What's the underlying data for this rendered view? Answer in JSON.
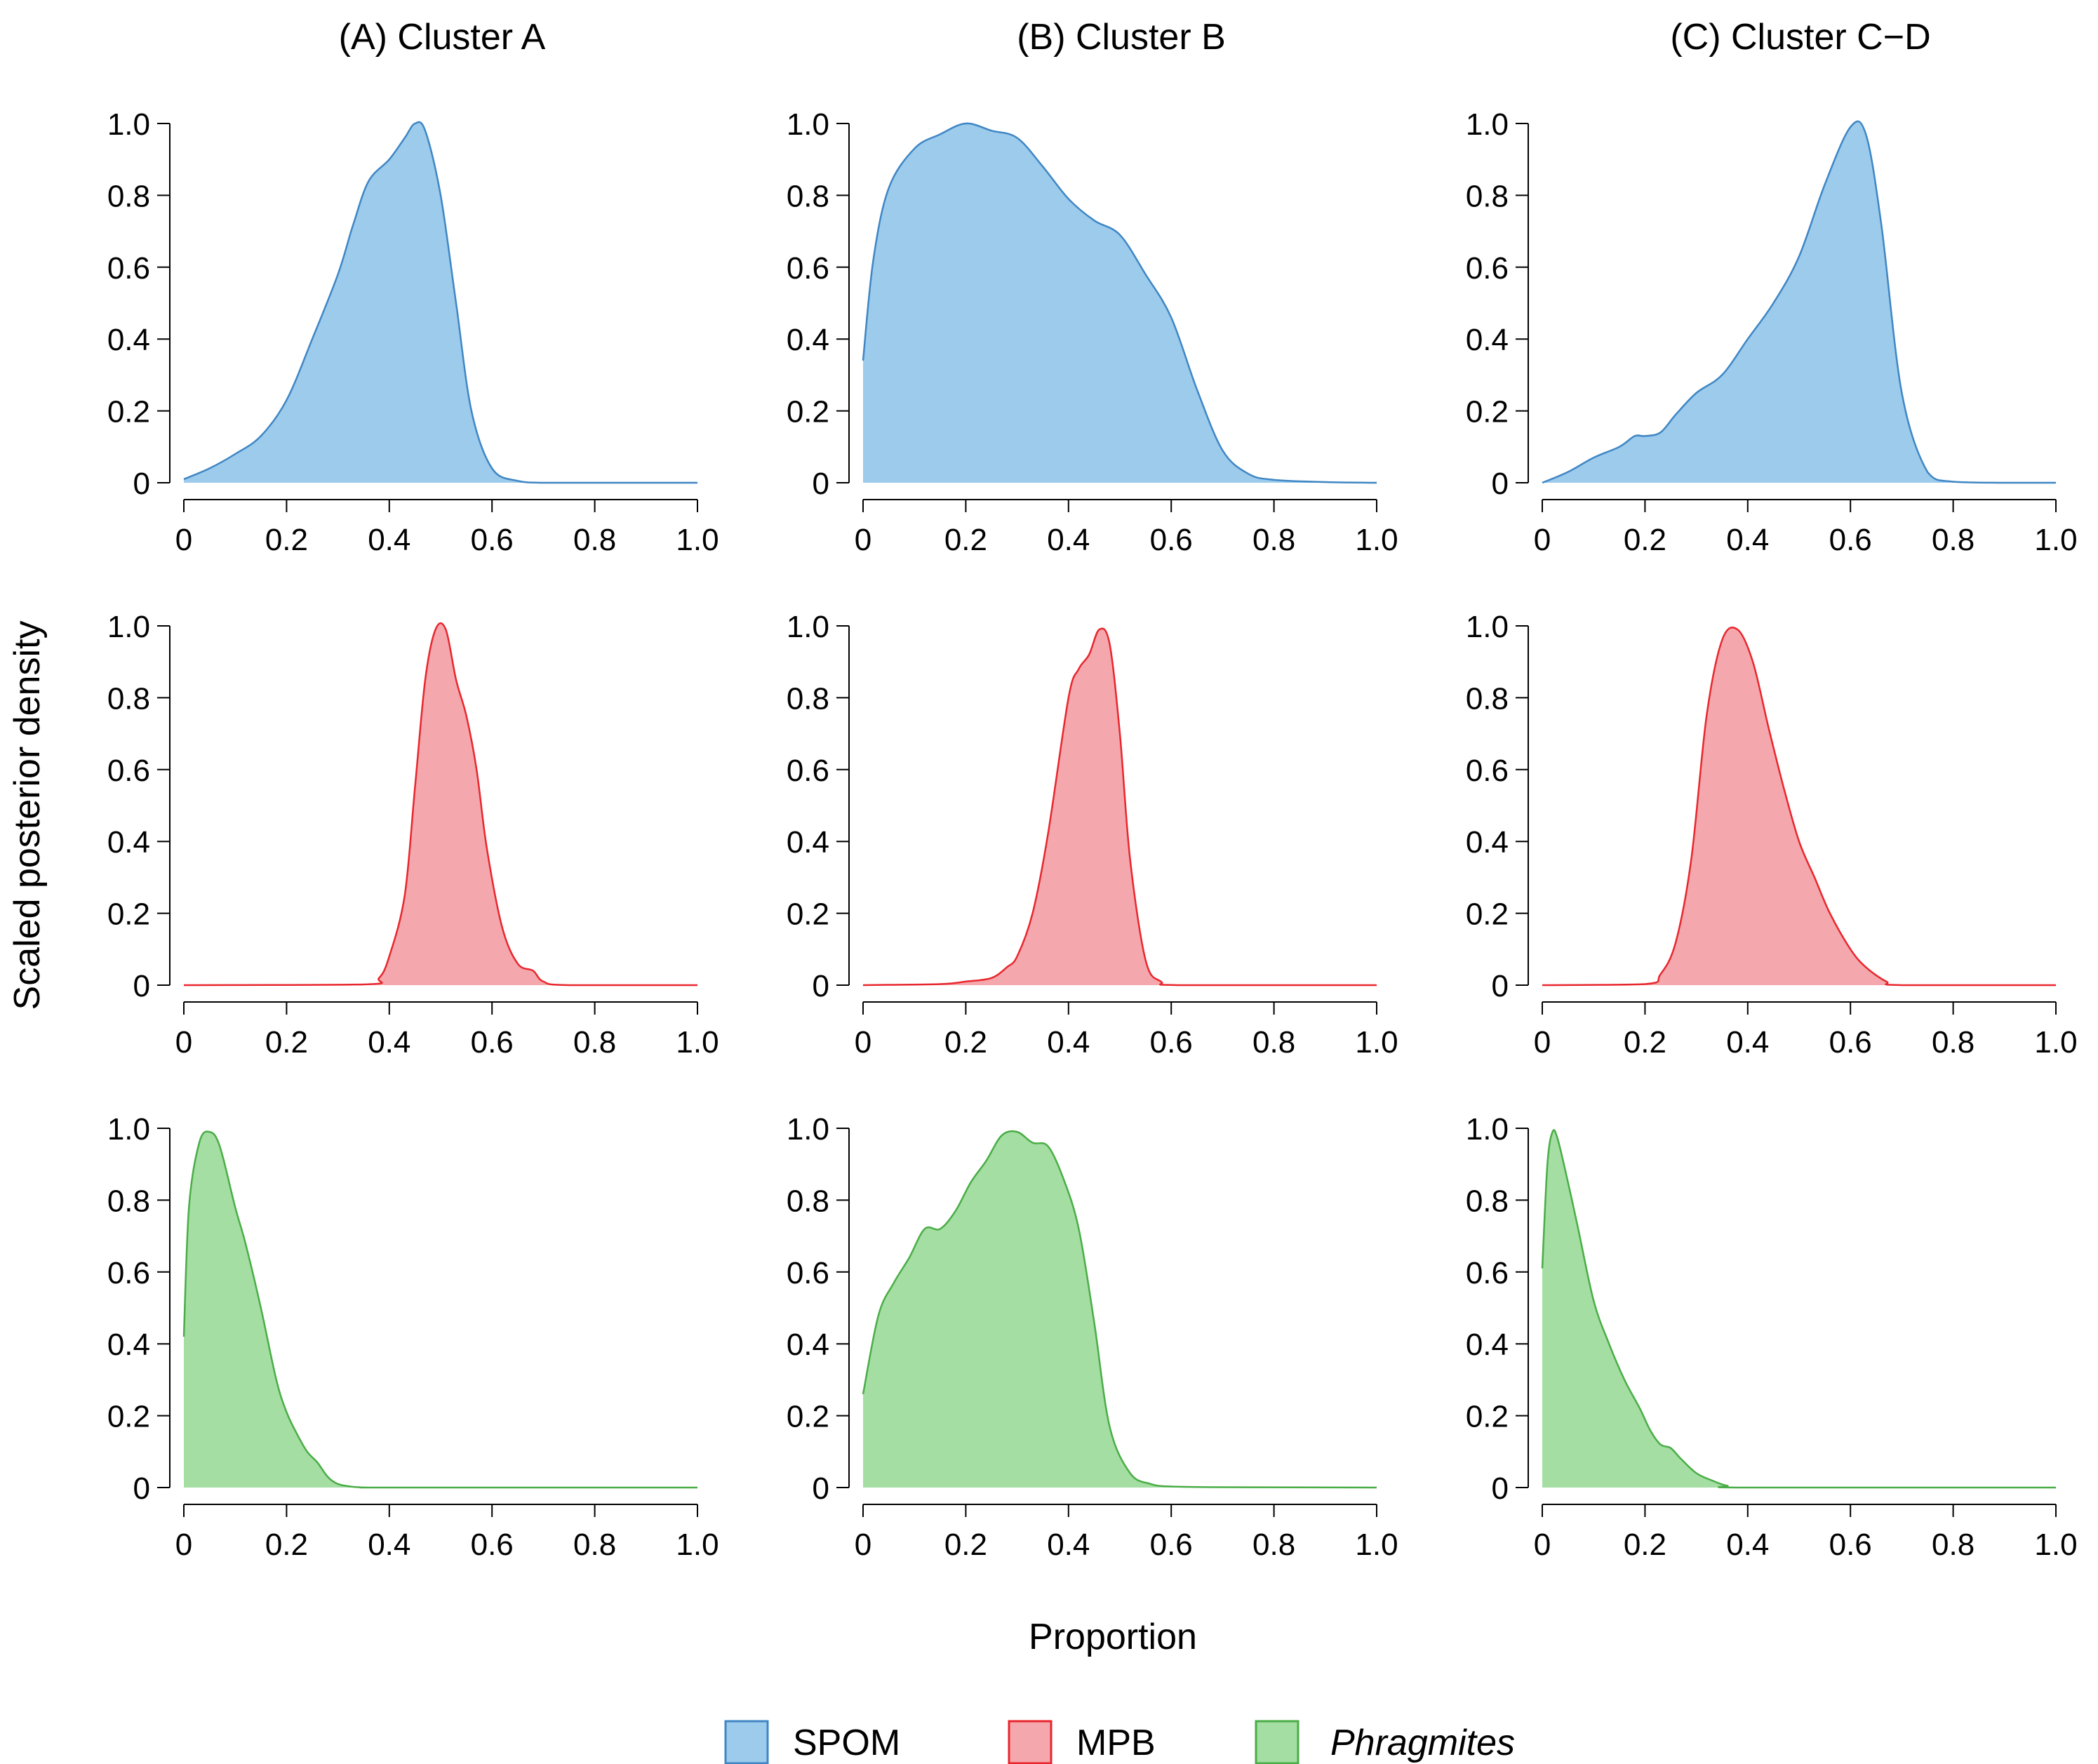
{
  "ylabel": "Scaled posterior density",
  "xlabel": "Proportion",
  "column_titles": [
    "(A) Cluster A",
    "(B) Cluster B",
    "(C) Cluster C−D"
  ],
  "legend": [
    {
      "label": "SPOM",
      "italic": false,
      "fill": "#9ccbec",
      "stroke": "#3f86c4"
    },
    {
      "label": "MPB",
      "italic": false,
      "fill": "#f4a8ad",
      "stroke": "#e8262d"
    },
    {
      "label": "Phragmites",
      "italic": true,
      "fill": "#a4dea2",
      "stroke": "#4aad47"
    }
  ],
  "chart_data": [
    {
      "type": "area",
      "title": "(A) Cluster A",
      "series": "SPOM",
      "xlim": [
        0,
        1
      ],
      "ylim": [
        0,
        1
      ],
      "xticks": [
        "0",
        "0.2",
        "0.4",
        "0.6",
        "0.8",
        "1.0"
      ],
      "yticks": [
        "0",
        "0.2",
        "0.4",
        "0.6",
        "0.8",
        "1.0"
      ],
      "x": [
        0,
        0.05,
        0.1,
        0.15,
        0.2,
        0.25,
        0.3,
        0.33,
        0.36,
        0.4,
        0.43,
        0.45,
        0.47,
        0.5,
        0.53,
        0.56,
        0.6,
        0.65,
        0.7,
        0.8,
        0.9,
        1.0
      ],
      "y": [
        0.01,
        0.04,
        0.08,
        0.13,
        0.23,
        0.4,
        0.58,
        0.72,
        0.84,
        0.9,
        0.96,
        1.0,
        0.98,
        0.8,
        0.5,
        0.2,
        0.04,
        0.005,
        0,
        0,
        0,
        0
      ]
    },
    {
      "type": "area",
      "title": "(B) Cluster B",
      "series": "SPOM",
      "xlim": [
        0,
        1
      ],
      "ylim": [
        0,
        1
      ],
      "xticks": [
        "0",
        "0.2",
        "0.4",
        "0.6",
        "0.8",
        "1.0"
      ],
      "yticks": [
        "0",
        "0.2",
        "0.4",
        "0.6",
        "0.8",
        "1.0"
      ],
      "x": [
        0,
        0.02,
        0.05,
        0.1,
        0.15,
        0.2,
        0.25,
        0.3,
        0.35,
        0.4,
        0.45,
        0.5,
        0.55,
        0.6,
        0.65,
        0.7,
        0.75,
        0.8,
        0.9,
        1.0
      ],
      "y": [
        0.34,
        0.62,
        0.82,
        0.93,
        0.97,
        1.0,
        0.98,
        0.96,
        0.88,
        0.79,
        0.73,
        0.69,
        0.58,
        0.46,
        0.26,
        0.09,
        0.025,
        0.008,
        0.002,
        0
      ]
    },
    {
      "type": "area",
      "title": "(C) Cluster C−D",
      "series": "SPOM",
      "xlim": [
        0,
        1
      ],
      "ylim": [
        0,
        1
      ],
      "xticks": [
        "0",
        "0.2",
        "0.4",
        "0.6",
        "0.8",
        "1.0"
      ],
      "yticks": [
        "0",
        "0.2",
        "0.4",
        "0.6",
        "0.8",
        "1.0"
      ],
      "x": [
        0,
        0.05,
        0.1,
        0.15,
        0.18,
        0.2,
        0.23,
        0.26,
        0.3,
        0.35,
        0.4,
        0.45,
        0.5,
        0.55,
        0.6,
        0.63,
        0.66,
        0.7,
        0.75,
        0.8,
        0.9,
        1.0
      ],
      "y": [
        0.0,
        0.03,
        0.07,
        0.1,
        0.13,
        0.13,
        0.14,
        0.19,
        0.25,
        0.3,
        0.4,
        0.5,
        0.63,
        0.83,
        0.99,
        0.97,
        0.72,
        0.25,
        0.03,
        0.003,
        0,
        0
      ]
    },
    {
      "type": "area",
      "title": "",
      "series": "MPB",
      "xlim": [
        0,
        1
      ],
      "ylim": [
        0,
        1
      ],
      "xticks": [
        "0",
        "0.2",
        "0.4",
        "0.6",
        "0.8",
        "1.0"
      ],
      "yticks": [
        "0",
        "0.2",
        "0.4",
        "0.6",
        "0.8",
        "1.0"
      ],
      "x": [
        0,
        0.35,
        0.38,
        0.4,
        0.43,
        0.45,
        0.47,
        0.49,
        0.51,
        0.53,
        0.55,
        0.57,
        0.59,
        0.62,
        0.65,
        0.68,
        0.7,
        0.75,
        1.0
      ],
      "y": [
        0,
        0.002,
        0.02,
        0.08,
        0.25,
        0.55,
        0.85,
        0.99,
        0.99,
        0.85,
        0.75,
        0.6,
        0.38,
        0.16,
        0.06,
        0.04,
        0.01,
        0,
        0
      ]
    },
    {
      "type": "area",
      "title": "",
      "series": "MPB",
      "xlim": [
        0,
        1
      ],
      "ylim": [
        0,
        1
      ],
      "xticks": [
        "0",
        "0.2",
        "0.4",
        "0.6",
        "0.8",
        "1.0"
      ],
      "yticks": [
        "0",
        "0.2",
        "0.4",
        "0.6",
        "0.8",
        "1.0"
      ],
      "x": [
        0,
        0.15,
        0.2,
        0.25,
        0.28,
        0.3,
        0.33,
        0.36,
        0.4,
        0.42,
        0.44,
        0.46,
        0.48,
        0.5,
        0.52,
        0.55,
        0.58,
        0.62,
        1.0
      ],
      "y": [
        0,
        0.003,
        0.01,
        0.02,
        0.05,
        0.08,
        0.2,
        0.42,
        0.8,
        0.88,
        0.92,
        0.99,
        0.95,
        0.7,
        0.35,
        0.07,
        0.01,
        0,
        0
      ]
    },
    {
      "type": "area",
      "title": "",
      "series": "MPB",
      "xlim": [
        0,
        1
      ],
      "ylim": [
        0,
        1
      ],
      "xticks": [
        "0",
        "0.2",
        "0.4",
        "0.6",
        "0.8",
        "1.0"
      ],
      "yticks": [
        "0",
        "0.2",
        "0.4",
        "0.6",
        "0.8",
        "1.0"
      ],
      "x": [
        0,
        0.2,
        0.23,
        0.26,
        0.29,
        0.32,
        0.35,
        0.38,
        0.41,
        0.44,
        0.47,
        0.5,
        0.53,
        0.56,
        0.6,
        0.63,
        0.67,
        0.7,
        1.0
      ],
      "y": [
        0,
        0.003,
        0.03,
        0.12,
        0.35,
        0.75,
        0.96,
        0.99,
        0.9,
        0.72,
        0.55,
        0.4,
        0.3,
        0.2,
        0.1,
        0.05,
        0.01,
        0,
        0
      ]
    },
    {
      "type": "area",
      "title": "",
      "series": "Phragmites",
      "xlim": [
        0,
        1
      ],
      "ylim": [
        0,
        1
      ],
      "xticks": [
        "0",
        "0.2",
        "0.4",
        "0.6",
        "0.8",
        "1.0"
      ],
      "yticks": [
        "0",
        "0.2",
        "0.4",
        "0.6",
        "0.8",
        "1.0"
      ],
      "x": [
        0,
        0.01,
        0.03,
        0.05,
        0.07,
        0.1,
        0.12,
        0.15,
        0.18,
        0.2,
        0.22,
        0.24,
        0.26,
        0.28,
        0.3,
        0.33,
        0.36,
        0.4,
        1.0
      ],
      "y": [
        0.42,
        0.78,
        0.96,
        0.99,
        0.95,
        0.78,
        0.68,
        0.5,
        0.3,
        0.21,
        0.15,
        0.1,
        0.07,
        0.03,
        0.01,
        0.002,
        0,
        0,
        0
      ]
    },
    {
      "type": "area",
      "title": "",
      "series": "Phragmites",
      "xlim": [
        0,
        1
      ],
      "ylim": [
        0,
        1
      ],
      "xticks": [
        "0",
        "0.2",
        "0.4",
        "0.6",
        "0.8",
        "1.0"
      ],
      "yticks": [
        "0",
        "0.2",
        "0.4",
        "0.6",
        "0.8",
        "1.0"
      ],
      "x": [
        0,
        0.03,
        0.06,
        0.09,
        0.12,
        0.15,
        0.18,
        0.21,
        0.24,
        0.27,
        0.3,
        0.33,
        0.36,
        0.39,
        0.42,
        0.45,
        0.48,
        0.52,
        0.56,
        0.6,
        0.7,
        1.0
      ],
      "y": [
        0.26,
        0.48,
        0.57,
        0.64,
        0.72,
        0.72,
        0.77,
        0.85,
        0.91,
        0.98,
        0.99,
        0.96,
        0.95,
        0.86,
        0.72,
        0.46,
        0.17,
        0.04,
        0.01,
        0.003,
        0.001,
        0
      ]
    },
    {
      "type": "area",
      "title": "",
      "series": "Phragmites",
      "xlim": [
        0,
        1
      ],
      "ylim": [
        0,
        1
      ],
      "xticks": [
        "0",
        "0.2",
        "0.4",
        "0.6",
        "0.8",
        "1.0"
      ],
      "yticks": [
        "0",
        "0.2",
        "0.4",
        "0.6",
        "0.8",
        "1.0"
      ],
      "x": [
        0,
        0.01,
        0.02,
        0.03,
        0.05,
        0.07,
        0.1,
        0.13,
        0.16,
        0.19,
        0.21,
        0.23,
        0.25,
        0.27,
        0.3,
        0.33,
        0.36,
        0.4,
        1.0
      ],
      "y": [
        0.61,
        0.9,
        0.99,
        0.97,
        0.85,
        0.72,
        0.52,
        0.4,
        0.3,
        0.22,
        0.16,
        0.12,
        0.11,
        0.08,
        0.04,
        0.02,
        0.005,
        0,
        0
      ]
    }
  ]
}
